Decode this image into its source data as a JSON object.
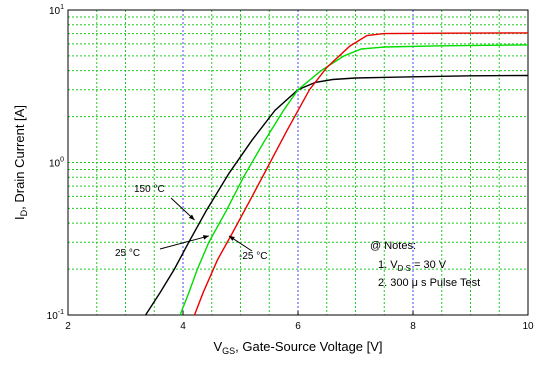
{
  "chart_data": {
    "type": "line",
    "xlabel": {
      "main": "V",
      "sub": "GS",
      "rest": ", Gate-Source Voltage [V]"
    },
    "ylabel": {
      "main": "I",
      "sub": "D",
      "rest": ", Drain Current [A]"
    },
    "x_ticks": [
      "2",
      "4",
      "6",
      "8",
      "10"
    ],
    "y_ticks": [
      {
        "base": "10",
        "exp": "1",
        "value": 10
      },
      {
        "base": "10",
        "exp": "0",
        "value": 1
      },
      {
        "base": "10",
        "exp": "-1",
        "value": 0.1
      }
    ],
    "xlim": [
      2,
      10
    ],
    "ylim": [
      0.1,
      10
    ],
    "y_scale": "log",
    "grid": true,
    "grid_color": "#22cc22",
    "major_grid_color": "#4444ff",
    "series": [
      {
        "label": "150 °C",
        "color": "#000000",
        "points": [
          [
            3.35,
            0.1
          ],
          [
            3.6,
            0.14
          ],
          [
            3.85,
            0.2
          ],
          [
            4.1,
            0.3
          ],
          [
            4.4,
            0.48
          ],
          [
            4.8,
            0.85
          ],
          [
            5.2,
            1.4
          ],
          [
            5.6,
            2.2
          ],
          [
            6.0,
            3.0
          ],
          [
            6.3,
            3.35
          ],
          [
            6.6,
            3.5
          ],
          [
            7.0,
            3.58
          ],
          [
            8.0,
            3.65
          ],
          [
            9.0,
            3.7
          ],
          [
            10.0,
            3.72
          ]
        ]
      },
      {
        "label": "25 °C",
        "color": "#00dd00",
        "points": [
          [
            3.95,
            0.1
          ],
          [
            4.1,
            0.14
          ],
          [
            4.25,
            0.2
          ],
          [
            4.45,
            0.3
          ],
          [
            4.75,
            0.48
          ],
          [
            5.05,
            0.8
          ],
          [
            5.4,
            1.35
          ],
          [
            5.75,
            2.2
          ],
          [
            6.0,
            3.0
          ],
          [
            6.4,
            4.0
          ],
          [
            6.8,
            5.0
          ],
          [
            7.1,
            5.55
          ],
          [
            7.5,
            5.72
          ],
          [
            8.5,
            5.82
          ],
          [
            10.0,
            5.9
          ]
        ]
      },
      {
        "label": "-25 °C",
        "color": "#ee0000",
        "points": [
          [
            4.2,
            0.1
          ],
          [
            4.35,
            0.14
          ],
          [
            4.6,
            0.23
          ],
          [
            4.85,
            0.34
          ],
          [
            5.15,
            0.55
          ],
          [
            5.45,
            0.9
          ],
          [
            5.8,
            1.6
          ],
          [
            6.2,
            3.0
          ],
          [
            6.5,
            4.2
          ],
          [
            6.9,
            5.8
          ],
          [
            7.2,
            6.8
          ],
          [
            7.5,
            7.0
          ],
          [
            8.5,
            7.05
          ],
          [
            10.0,
            7.08
          ]
        ]
      }
    ],
    "annotations": [
      {
        "text": "150 °C",
        "arrow_to": [
          4.2,
          0.42
        ]
      },
      {
        "text": "25 °C",
        "arrow_to": [
          4.45,
          0.33
        ]
      },
      {
        "text": "-25 °C",
        "arrow_to": [
          4.8,
          0.33
        ]
      }
    ],
    "notes": {
      "title": "@ Notes:",
      "line1": {
        "prefix": "1. V",
        "sub": "D S",
        "suffix": " = 30 V"
      },
      "line2": "2. 300 μ s Pulse Test"
    }
  }
}
